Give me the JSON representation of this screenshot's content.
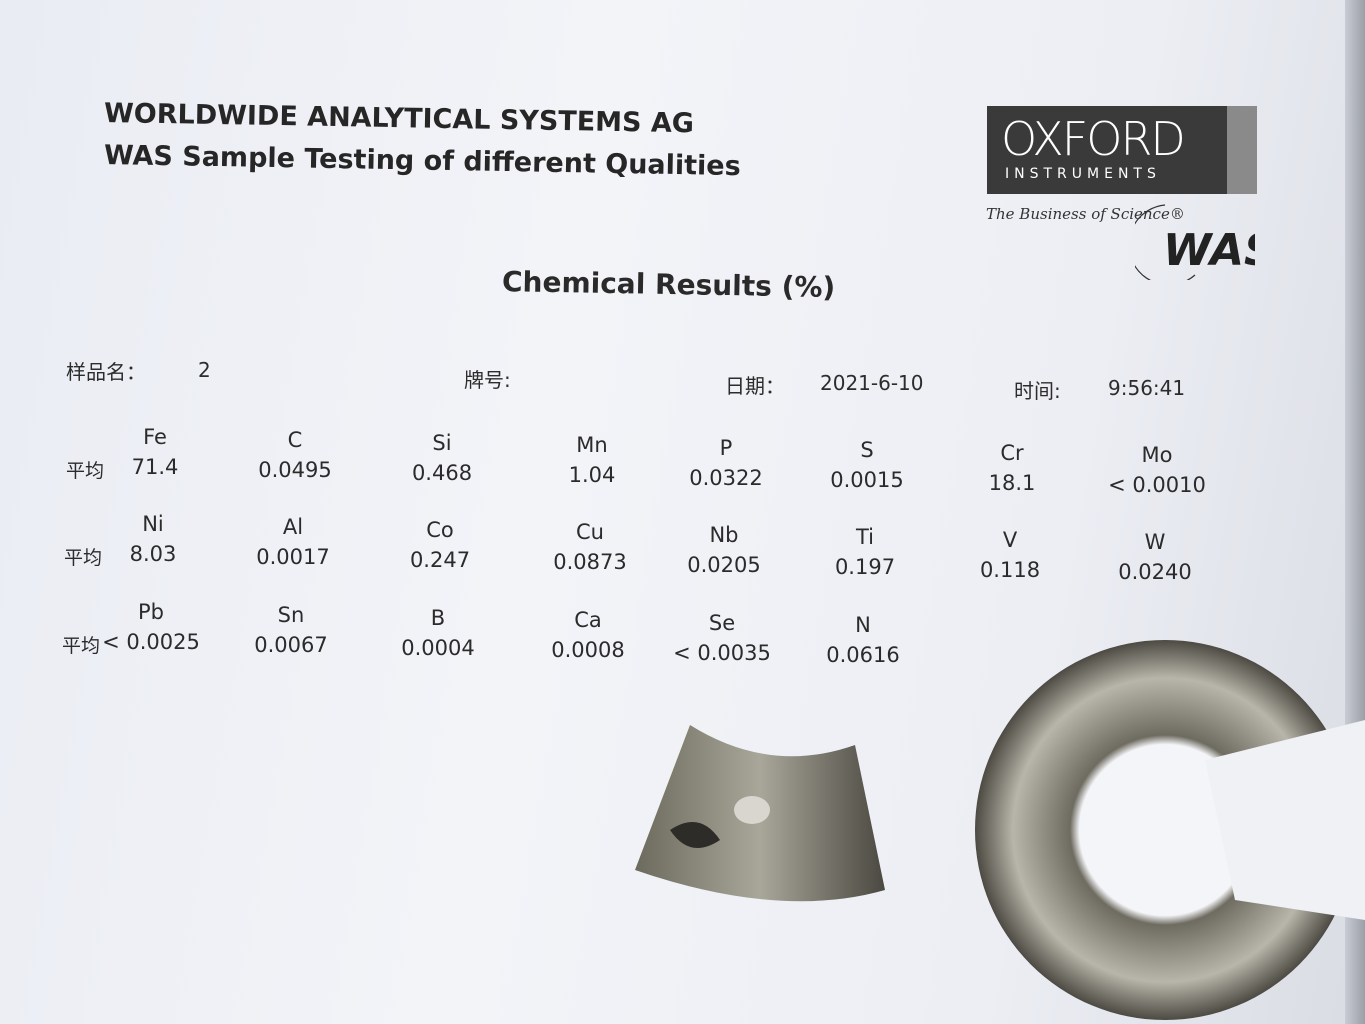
{
  "header": {
    "line1": "WORLDWIDE ANALYTICAL SYSTEMS AG",
    "line2": "WAS Sample Testing of different Qualities"
  },
  "logo": {
    "brand": "OXFORD",
    "sub": "INSTRUMENTS",
    "tagline": "The Business of Science®",
    "mark": "WAS"
  },
  "title": "Chemical Results   (%)",
  "meta": {
    "sample_label": "样品名：",
    "sample_value": "2",
    "grade_label": "牌号:",
    "date_label": "日期：",
    "date_value": "2021-6-10",
    "time_label": "时间:",
    "time_value": "9:56:41"
  },
  "avg_label": "平均",
  "rows": [
    [
      {
        "el": "Fe",
        "val": "71.4"
      },
      {
        "el": "C",
        "val": "0.0495"
      },
      {
        "el": "Si",
        "val": "0.468"
      },
      {
        "el": "Mn",
        "val": "1.04"
      },
      {
        "el": "P",
        "val": "0.0322"
      },
      {
        "el": "S",
        "val": "0.0015"
      },
      {
        "el": "Cr",
        "val": "18.1"
      },
      {
        "el": "Mo",
        "val": "< 0.0010"
      }
    ],
    [
      {
        "el": "Ni",
        "val": "8.03"
      },
      {
        "el": "Al",
        "val": "0.0017"
      },
      {
        "el": "Co",
        "val": "0.247"
      },
      {
        "el": "Cu",
        "val": "0.0873"
      },
      {
        "el": "Nb",
        "val": "0.0205"
      },
      {
        "el": "Ti",
        "val": "0.197"
      },
      {
        "el": "V",
        "val": "0.118"
      },
      {
        "el": "W",
        "val": "0.0240"
      }
    ],
    [
      {
        "el": "Pb",
        "val": "< 0.0025"
      },
      {
        "el": "Sn",
        "val": "0.0067"
      },
      {
        "el": "B",
        "val": "0.0004"
      },
      {
        "el": "Ca",
        "val": "0.0008"
      },
      {
        "el": "Se",
        "val": "< 0.0035"
      },
      {
        "el": "N",
        "val": "0.0616"
      }
    ]
  ]
}
